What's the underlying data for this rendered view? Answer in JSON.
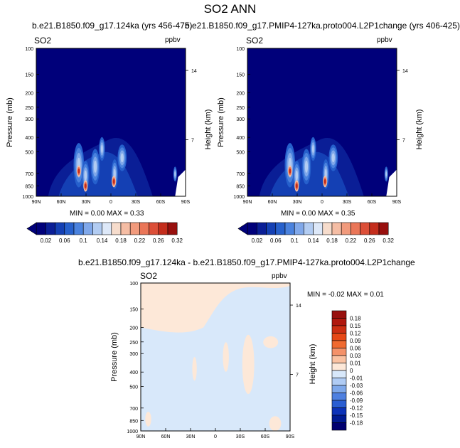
{
  "title": "SO2 ANN",
  "chart_data": [
    {
      "type": "heatmap",
      "title": "b.e21.B1850.f09_g17.124ka (yrs 456-475)",
      "left_string": "SO2",
      "right_string": "ppbv",
      "ylabel": "Pressure (mb)",
      "y2label": "Height (km)",
      "x_ticks": [
        "90N",
        "60N",
        "30N",
        "0",
        "30S",
        "60S",
        "90S"
      ],
      "y_ticks": [
        "100",
        "150",
        "200",
        "250",
        "300",
        "400",
        "500",
        "700",
        "850",
        "1000"
      ],
      "y2_ticks": [
        "14",
        "7"
      ],
      "ylim": [
        1000,
        100
      ],
      "min_max": "MIN =   0.00  MAX =   0.33",
      "colorbar_labels": [
        "0.02",
        "0.06",
        "0.1",
        "0.14",
        "0.18",
        "0.22",
        "0.26",
        "0.32"
      ]
    },
    {
      "type": "heatmap",
      "title": "b.e21.B1850.f09_g17.PMIP4-127ka.proto004.L2P1change (yrs 406-425)",
      "left_string": "SO2",
      "right_string": "ppbv",
      "ylabel": "Pressure (mb)",
      "y2label": "Height (km)",
      "x_ticks": [
        "90N",
        "60N",
        "30N",
        "0",
        "30S",
        "60S",
        "90S"
      ],
      "y_ticks": [
        "100",
        "150",
        "200",
        "250",
        "300",
        "400",
        "500",
        "700",
        "850",
        "1000"
      ],
      "y2_ticks": [
        "14",
        "7"
      ],
      "ylim": [
        1000,
        100
      ],
      "min_max": "MIN =   0.00  MAX =   0.35",
      "colorbar_labels": [
        "0.02",
        "0.06",
        "0.1",
        "0.14",
        "0.18",
        "0.22",
        "0.26",
        "0.32"
      ]
    },
    {
      "type": "heatmap",
      "title": "b.e21.B1850.f09_g17.124ka - b.e21.B1850.f09_g17.PMIP4-127ka.proto004.L2P1change",
      "left_string": "SO2",
      "right_string": "ppbv",
      "ylabel": "Pressure (mb)",
      "y2label": "Height (km)",
      "x_ticks": [
        "90N",
        "60N",
        "30N",
        "0",
        "30S",
        "60S",
        "90S"
      ],
      "y_ticks": [
        "100",
        "150",
        "200",
        "250",
        "300",
        "400",
        "500",
        "700",
        "850",
        "1000"
      ],
      "y2_ticks": [
        "14",
        "7"
      ],
      "ylim": [
        1000,
        100
      ],
      "min_max": "MIN =  -0.02  MAX =   0.01",
      "colorbar_labels": [
        "0.18",
        "0.15",
        "0.12",
        "0.09",
        "0.06",
        "0.03",
        "0.01",
        "0",
        "-0.01",
        "-0.03",
        "-0.06",
        "-0.09",
        "-0.12",
        "-0.15",
        "-0.18"
      ]
    }
  ],
  "colors": {
    "seq": [
      "#00007a",
      "#0a1e96",
      "#1440b4",
      "#2660cc",
      "#4a82de",
      "#80a8ea",
      "#b2ccf2",
      "#dde8f8",
      "#f6dccc",
      "#f5bda4",
      "#f19a7c",
      "#ea7658",
      "#dc4f38",
      "#c42d1c",
      "#98100e"
    ],
    "div": [
      "#98100e",
      "#b0180e",
      "#cc2e12",
      "#e64816",
      "#f06a30",
      "#f4926a",
      "#fac2a2",
      "#fde8d8",
      "#d8e8fa",
      "#b0ccf4",
      "#7ea8ea",
      "#4e80e0",
      "#2a5ed2",
      "#0c32b8",
      "#001a92",
      "#000070"
    ]
  }
}
